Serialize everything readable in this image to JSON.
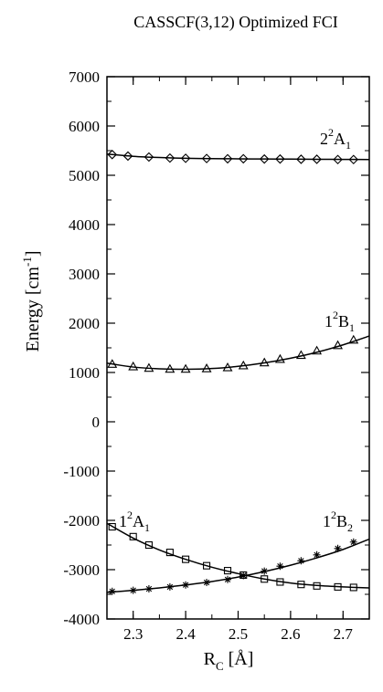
{
  "chart_data": {
    "type": "line",
    "title": "CASSCF(3,12) Optimized FCI",
    "xlabel": "R",
    "xlabel_sub": "C",
    "xlabel_unit": " [Å]",
    "ylabel": "Energy [cm",
    "ylabel_sup": "-1",
    "ylabel_end": "]",
    "xlim": [
      2.25,
      2.75
    ],
    "ylim": [
      -4000,
      7000
    ],
    "xticks": [
      2.3,
      2.4,
      2.5,
      2.6,
      2.7
    ],
    "xtick_labels": [
      "2.3",
      "2.4",
      "2.5",
      "2.6",
      "2.7"
    ],
    "yticks": [
      -4000,
      -3000,
      -2000,
      -1000,
      0,
      1000,
      2000,
      3000,
      4000,
      5000,
      6000,
      7000
    ],
    "ytick_labels": [
      "-4000",
      "-3000",
      "-2000",
      "-1000",
      "0",
      "1000",
      "2000",
      "3000",
      "4000",
      "5000",
      "6000",
      "7000"
    ],
    "grid": false,
    "series": [
      {
        "label_main": "2",
        "label_sup": "2",
        "label_letter": "A",
        "label_sub": "1",
        "marker": "diamond",
        "x": [
          2.26,
          2.29,
          2.33,
          2.37,
          2.4,
          2.44,
          2.48,
          2.51,
          2.55,
          2.58,
          2.62,
          2.65,
          2.69,
          2.72
        ],
        "y": [
          5420,
          5390,
          5370,
          5350,
          5345,
          5340,
          5335,
          5335,
          5330,
          5330,
          5325,
          5325,
          5320,
          5320
        ],
        "curve_x": [
          2.25,
          2.3,
          2.35,
          2.4,
          2.45,
          2.5,
          2.55,
          2.6,
          2.65,
          2.7,
          2.75
        ],
        "curve_y": [
          5430,
          5385,
          5360,
          5345,
          5338,
          5334,
          5330,
          5328,
          5325,
          5322,
          5320
        ]
      },
      {
        "label_main": "1",
        "label_sup": "2",
        "label_letter": "B",
        "label_sub": "1",
        "marker": "triangle",
        "x": [
          2.26,
          2.3,
          2.33,
          2.37,
          2.4,
          2.44,
          2.48,
          2.51,
          2.55,
          2.58,
          2.62,
          2.65,
          2.69,
          2.72
        ],
        "y": [
          1170,
          1120,
          1090,
          1070,
          1070,
          1080,
          1100,
          1140,
          1200,
          1270,
          1350,
          1440,
          1550,
          1660
        ],
        "curve_x": [
          2.25,
          2.3,
          2.35,
          2.4,
          2.45,
          2.5,
          2.55,
          2.6,
          2.65,
          2.7,
          2.75
        ],
        "curve_y": [
          1190,
          1110,
          1075,
          1065,
          1080,
          1125,
          1195,
          1290,
          1410,
          1560,
          1740
        ]
      },
      {
        "label_main": "1",
        "label_sup": "2",
        "label_letter": "A",
        "label_sub": "1",
        "marker": "square",
        "x": [
          2.26,
          2.3,
          2.33,
          2.37,
          2.4,
          2.44,
          2.48,
          2.51,
          2.55,
          2.58,
          2.62,
          2.65,
          2.69,
          2.72
        ],
        "y": [
          -2130,
          -2330,
          -2500,
          -2650,
          -2790,
          -2920,
          -3020,
          -3110,
          -3190,
          -3250,
          -3300,
          -3330,
          -3350,
          -3360
        ],
        "curve_x": [
          2.25,
          2.3,
          2.35,
          2.4,
          2.45,
          2.5,
          2.55,
          2.6,
          2.65,
          2.7,
          2.75
        ],
        "curve_y": [
          -2060,
          -2360,
          -2600,
          -2790,
          -2950,
          -3080,
          -3190,
          -3270,
          -3320,
          -3350,
          -3370
        ]
      },
      {
        "label_main": "1",
        "label_sup": "2",
        "label_letter": "B",
        "label_sub": "2",
        "marker": "asterisk",
        "x": [
          2.26,
          2.3,
          2.33,
          2.37,
          2.4,
          2.44,
          2.48,
          2.51,
          2.55,
          2.58,
          2.62,
          2.65,
          2.69,
          2.72
        ],
        "y": [
          -3440,
          -3420,
          -3390,
          -3350,
          -3310,
          -3260,
          -3200,
          -3120,
          -3030,
          -2930,
          -2820,
          -2700,
          -2570,
          -2440
        ],
        "curve_x": [
          2.25,
          2.3,
          2.35,
          2.4,
          2.45,
          2.5,
          2.55,
          2.6,
          2.65,
          2.7,
          2.75
        ],
        "curve_y": [
          -3460,
          -3420,
          -3370,
          -3310,
          -3240,
          -3150,
          -3040,
          -2910,
          -2760,
          -2590,
          -2380
        ]
      }
    ]
  }
}
